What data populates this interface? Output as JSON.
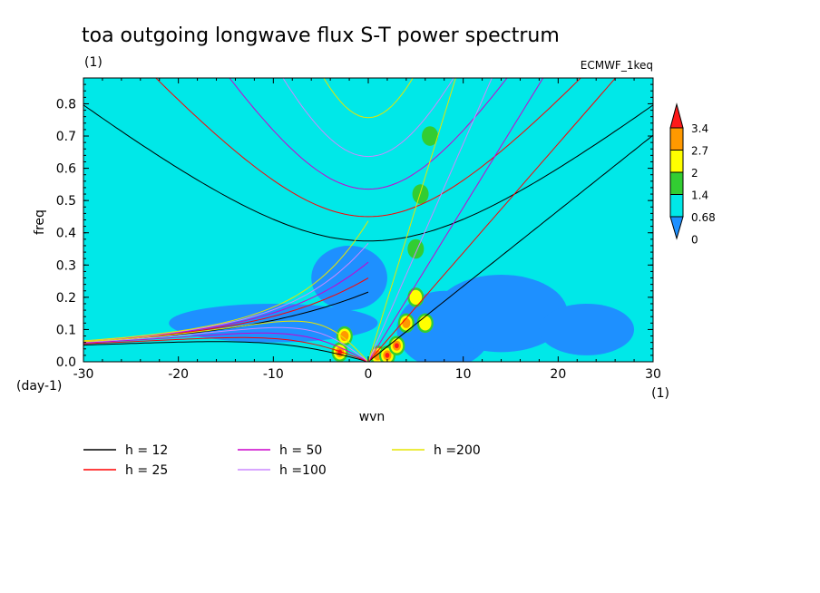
{
  "chart_data": {
    "type": "heatmap",
    "title": "toa outgoing longwave flux S-T power spectrum",
    "units_label": "(1)",
    "dataset": "ECMWF_1keq",
    "xlabel": "wvn",
    "ylabel": "freq",
    "x_units": "(1)",
    "y_units": "(day-1)",
    "xlim": [
      -30,
      30
    ],
    "ylim": [
      0,
      0.88
    ],
    "x_ticks": [
      -30,
      -20,
      -10,
      0,
      10,
      20,
      30
    ],
    "y_ticks": [
      0.0,
      0.1,
      0.2,
      0.3,
      0.4,
      0.5,
      0.6,
      0.7,
      0.8
    ],
    "x_tick_labels": [
      "-30",
      "-20",
      "-10",
      "0",
      "10",
      "20",
      "30"
    ],
    "y_tick_labels": [
      "0.0",
      "0.1",
      "0.2",
      "0.3",
      "0.4",
      "0.5",
      "0.6",
      "0.7",
      "0.8"
    ],
    "colorbar": {
      "levels": [
        "3.4",
        "2.7",
        "2",
        "1.4",
        "0.68",
        "0"
      ],
      "colors": [
        "#1e90ff",
        "#00e8e8",
        "#32cd32",
        "#ffff00",
        "#ff9900",
        "#ff1a1a"
      ],
      "background": "#00e8e8"
    },
    "contour_series": [
      {
        "name": "h = 12",
        "h": 12,
        "color": "#000000"
      },
      {
        "name": "h = 25",
        "h": 25,
        "color": "#ff0000"
      },
      {
        "name": "h = 50",
        "h": 50,
        "color": "#cc00cc"
      },
      {
        "name": "h =100",
        "h": 100,
        "color": "#cc88ff"
      },
      {
        "name": "h =200",
        "h": 200,
        "color": "#e6e600"
      }
    ],
    "high_power_spots": [
      {
        "x": -3.0,
        "y": 0.03,
        "level": 5
      },
      {
        "x": -2.5,
        "y": 0.08,
        "level": 4
      },
      {
        "x": 1.0,
        "y": 0.02,
        "level": 4
      },
      {
        "x": 2.0,
        "y": 0.02,
        "level": 5
      },
      {
        "x": 3.0,
        "y": 0.05,
        "level": 5
      },
      {
        "x": 4.0,
        "y": 0.12,
        "level": 4
      },
      {
        "x": 5.0,
        "y": 0.2,
        "level": 3
      },
      {
        "x": 6.0,
        "y": 0.12,
        "level": 3
      },
      {
        "x": 6.5,
        "y": 0.7,
        "level": 2
      },
      {
        "x": 5.5,
        "y": 0.52,
        "level": 2
      },
      {
        "x": 5.0,
        "y": 0.35,
        "level": 2
      }
    ],
    "low_power_regions": [
      {
        "x": -10,
        "y": 0.12,
        "rx": 11,
        "ry": 0.06
      },
      {
        "x": -2,
        "y": 0.26,
        "rx": 4,
        "ry": 0.1
      },
      {
        "x": 8,
        "y": 0.1,
        "rx": 5,
        "ry": 0.12
      },
      {
        "x": 14,
        "y": 0.15,
        "rx": 7,
        "ry": 0.12
      },
      {
        "x": 23,
        "y": 0.1,
        "rx": 5,
        "ry": 0.08
      }
    ]
  }
}
